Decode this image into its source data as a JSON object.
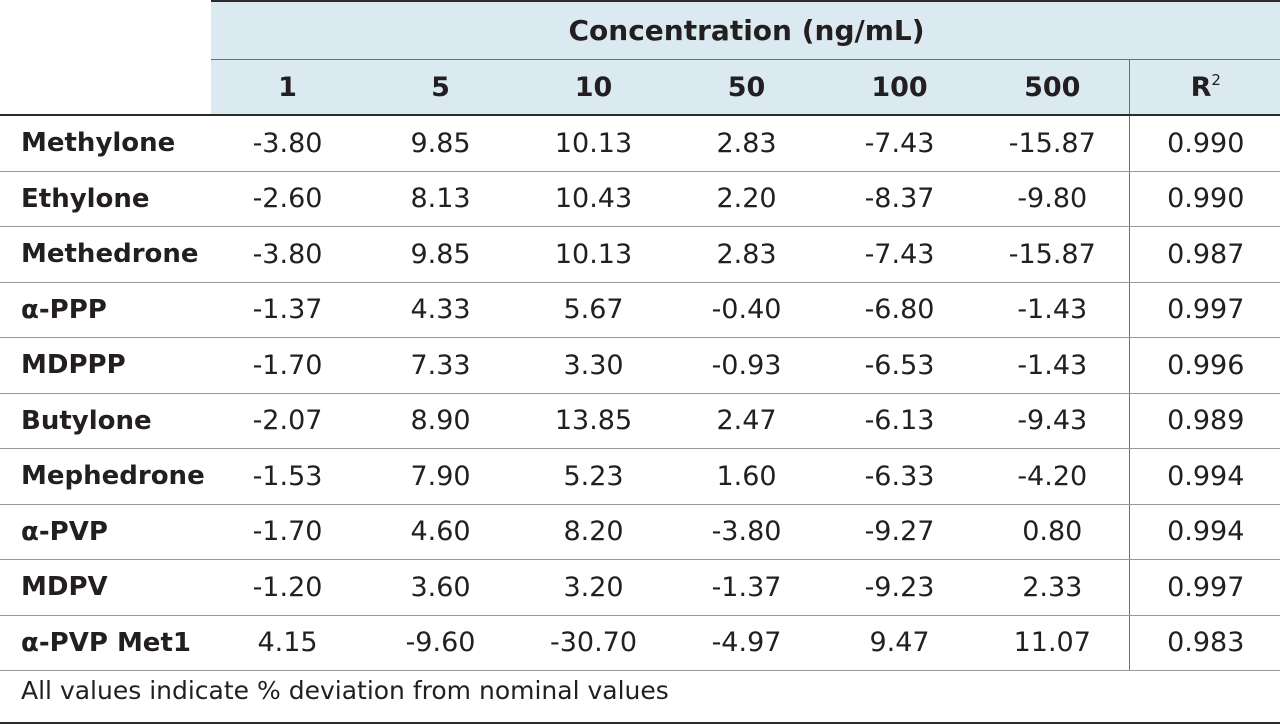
{
  "table": {
    "group_header": "Concentration (ng/mL)",
    "columns": [
      "1",
      "5",
      "10",
      "50",
      "100",
      "500"
    ],
    "r2_header_base": "R",
    "r2_header_sup": "2",
    "rows": [
      {
        "name": "Methylone",
        "values": [
          "-3.80",
          "9.85",
          "10.13",
          "2.83",
          "-7.43",
          "-15.87"
        ],
        "r2": "0.990"
      },
      {
        "name": "Ethylone",
        "values": [
          "-2.60",
          "8.13",
          "10.43",
          "2.20",
          "-8.37",
          "-9.80"
        ],
        "r2": "0.990"
      },
      {
        "name": "Methedrone",
        "values": [
          "-3.80",
          "9.85",
          "10.13",
          "2.83",
          "-7.43",
          "-15.87"
        ],
        "r2": "0.987"
      },
      {
        "name": "α-PPP",
        "values": [
          "-1.37",
          "4.33",
          "5.67",
          "-0.40",
          "-6.80",
          "-1.43"
        ],
        "r2": "0.997"
      },
      {
        "name": "MDPPP",
        "values": [
          "-1.70",
          "7.33",
          "3.30",
          "-0.93",
          "-6.53",
          "-1.43"
        ],
        "r2": "0.996"
      },
      {
        "name": "Butylone",
        "values": [
          "-2.07",
          "8.90",
          "13.85",
          "2.47",
          "-6.13",
          "-9.43"
        ],
        "r2": "0.989"
      },
      {
        "name": "Mephedrone",
        "values": [
          "-1.53",
          "7.90",
          "5.23",
          "1.60",
          "-6.33",
          "-4.20"
        ],
        "r2": "0.994"
      },
      {
        "name": "α-PVP",
        "values": [
          "-1.70",
          "4.60",
          "8.20",
          "-3.80",
          "-9.27",
          "0.80"
        ],
        "r2": "0.994"
      },
      {
        "name": "MDPV",
        "values": [
          "-1.20",
          "3.60",
          "3.20",
          "-1.37",
          "-9.23",
          "2.33"
        ],
        "r2": "0.997"
      },
      {
        "name": "α-PVP Met1",
        "values": [
          "4.15",
          "-9.60",
          "-30.70",
          "-4.97",
          "9.47",
          "11.07"
        ],
        "r2": "0.983"
      }
    ],
    "footnote": "All values indicate % deviation from nominal values"
  },
  "colors": {
    "header_fill": "#dbeaf1",
    "text": "#231f20",
    "rule": "#2b2b2b"
  }
}
